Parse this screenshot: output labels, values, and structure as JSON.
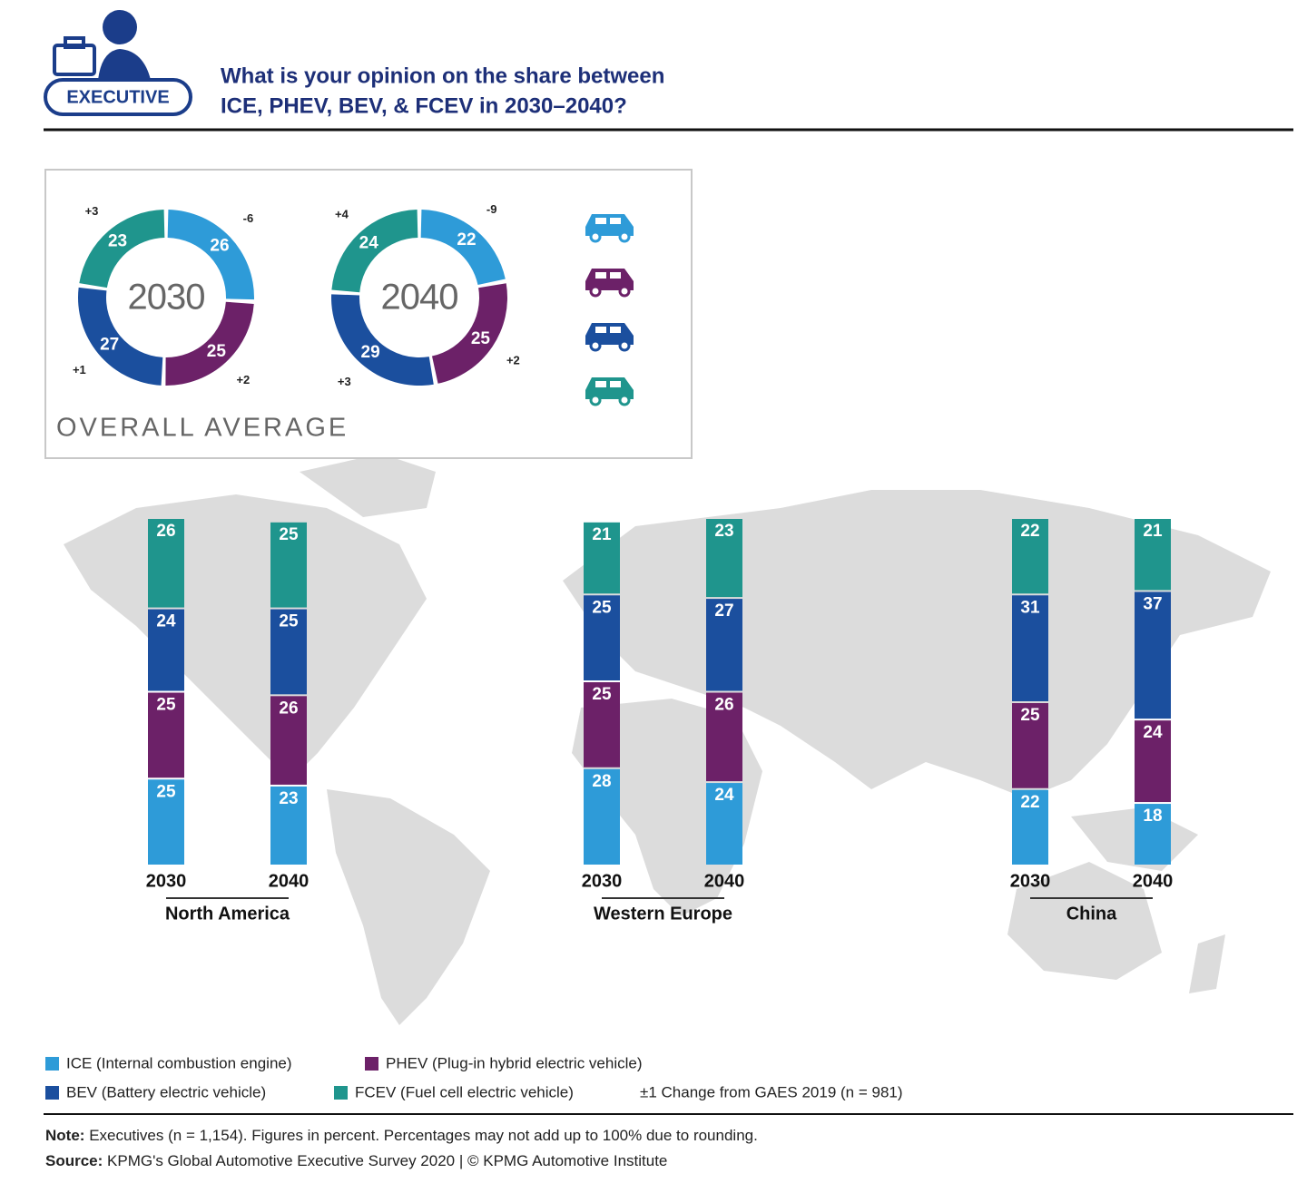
{
  "header": {
    "badge": "EXECUTIVE",
    "title": [
      "What is your opinion on the share between",
      "ICE, PHEV, BEV, & FCEV in 2030–2040?"
    ]
  },
  "overall_label": "OVERALL AVERAGE",
  "chart_data": [
    {
      "type": "pie",
      "title": "2030",
      "values": [
        26,
        25,
        27,
        23
      ],
      "changes": [
        "-6",
        "+2",
        "+1",
        "+3"
      ],
      "colors": [
        "#2e9bd8",
        "#6c2168",
        "#1b4f9e",
        "#1f958d"
      ]
    },
    {
      "type": "pie",
      "title": "2040",
      "values": [
        22,
        25,
        29,
        24
      ],
      "changes": [
        "-9",
        "+2",
        "+3",
        "+4"
      ],
      "colors": [
        "#2e9bd8",
        "#6c2168",
        "#1b4f9e",
        "#1f958d"
      ]
    },
    {
      "type": "bar",
      "stacked": true,
      "title": "North America",
      "categories": [
        "2030",
        "2040"
      ],
      "series": [
        {
          "name": "ICE (Internal combustion engine)",
          "color": "#2e9bd8",
          "values": [
            25,
            23
          ]
        },
        {
          "name": "PHEV (Plug-in hybrid electric vehicle)",
          "color": "#6c2168",
          "values": [
            25,
            26
          ]
        },
        {
          "name": "BEV (Battery electric vehicle)",
          "color": "#1b4f9e",
          "values": [
            24,
            25
          ]
        },
        {
          "name": "FCEV (Fuel cell electric vehicle)",
          "color": "#1f958d",
          "values": [
            26,
            25
          ]
        }
      ]
    },
    {
      "type": "bar",
      "stacked": true,
      "title": "Western Europe",
      "categories": [
        "2030",
        "2040"
      ],
      "series": [
        {
          "color": "#2e9bd8",
          "values": [
            28,
            24
          ]
        },
        {
          "color": "#6c2168",
          "values": [
            25,
            26
          ]
        },
        {
          "color": "#1b4f9e",
          "values": [
            25,
            27
          ]
        },
        {
          "color": "#1f958d",
          "values": [
            21,
            23
          ]
        }
      ]
    },
    {
      "type": "bar",
      "stacked": true,
      "title": "China",
      "categories": [
        "2030",
        "2040"
      ],
      "series": [
        {
          "color": "#2e9bd8",
          "values": [
            22,
            18
          ]
        },
        {
          "color": "#6c2168",
          "values": [
            25,
            24
          ]
        },
        {
          "color": "#1b4f9e",
          "values": [
            31,
            37
          ]
        },
        {
          "color": "#1f958d",
          "values": [
            22,
            21
          ]
        }
      ]
    }
  ],
  "change_note": "±1 Change from GAES 2019 (n = 981)",
  "note": {
    "label": "Note:",
    "text": "Executives (n = 1,154). Figures in percent. Percentages may not add up to 100% due to rounding."
  },
  "source": {
    "label": "Source:",
    "text": "KPMG's Global Automotive Executive Survey 2020 | © KPMG Automotive Institute"
  }
}
